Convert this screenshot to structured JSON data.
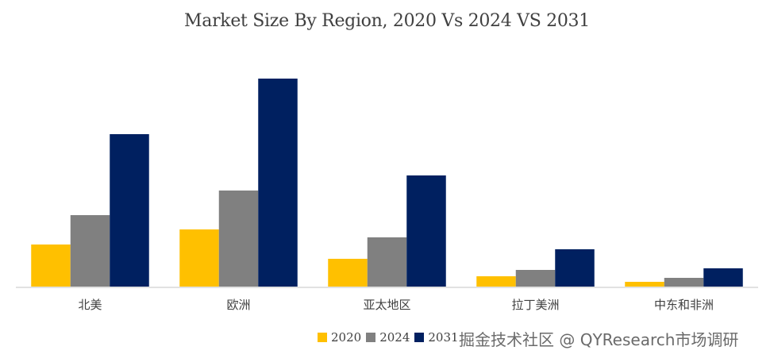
{
  "chart_data": {
    "type": "bar",
    "title": "Market Size By Region, 2020 Vs 2024 VS 2031",
    "xlabel": "",
    "ylabel": "",
    "ylim": [
      0,
      280
    ],
    "grid": false,
    "value_units": "relative (no y-axis shown)",
    "categories": [
      "北美",
      "欧洲",
      "亚太地区",
      "拉丁美洲",
      "中东和非洲"
    ],
    "series": [
      {
        "name": "2020",
        "color": "#FFC000",
        "values": [
          53,
          72,
          35,
          13,
          6
        ]
      },
      {
        "name": "2024",
        "color": "#808080",
        "values": [
          90,
          121,
          62,
          21,
          11
        ]
      },
      {
        "name": "2031",
        "color": "#002060",
        "values": [
          192,
          262,
          140,
          47,
          23
        ]
      }
    ],
    "legend_position": "bottom-center"
  },
  "watermark": "掘金技术社区 @ QYResearch市场调研"
}
